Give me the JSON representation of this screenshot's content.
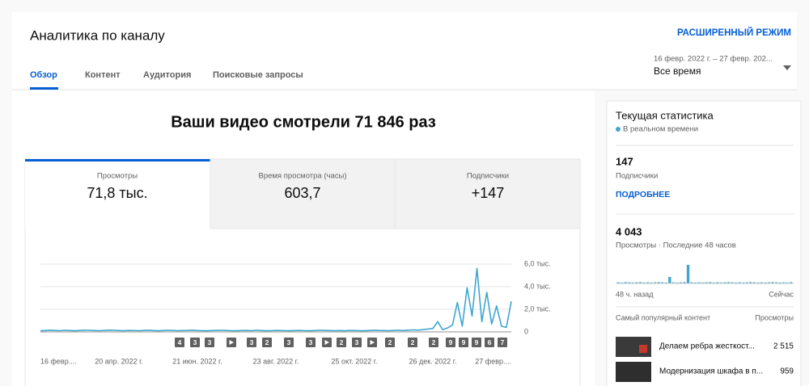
{
  "header": {
    "title": "Аналитика по каналу",
    "advanced_mode": "РАСШИРЕННЫЙ РЕЖИМ",
    "tabs": [
      "Обзор",
      "Контент",
      "Аудитория",
      "Поисковые запросы"
    ],
    "date_range": "16 февр. 2022 г. – 27 февр. 202...",
    "period": "Все время"
  },
  "summary": {
    "headline": "Ваши видео смотрели 71 846 раз",
    "metrics": [
      {
        "label": "Просмотры",
        "value": "71,8 тыс."
      },
      {
        "label": "Время просмотра (часы)",
        "value": "603,7"
      },
      {
        "label": "Подписчики",
        "value": "+147"
      }
    ]
  },
  "chart_data": {
    "type": "line",
    "color": "#3ea6cf",
    "categories": [
      "16 февр....",
      null,
      null,
      null,
      null,
      null,
      null,
      null,
      null,
      null,
      null,
      null,
      null,
      null,
      null,
      null,
      "20 апр. 2022 г.",
      null,
      null,
      null,
      null,
      null,
      null,
      null,
      null,
      null,
      null,
      null,
      null,
      null,
      null,
      null,
      "21 июн. 2022 г.",
      null,
      null,
      null,
      null,
      null,
      null,
      null,
      null,
      null,
      null,
      null,
      null,
      null,
      null,
      null,
      "23 авг. 2022 г.",
      null,
      null,
      null,
      null,
      null,
      null,
      null,
      null,
      null,
      null,
      null,
      null,
      null,
      null,
      null,
      "25 окт. 2022 г.",
      null,
      null,
      null,
      null,
      null,
      null,
      null,
      null,
      null,
      null,
      null,
      null,
      null,
      null,
      null,
      "26 дек. 2022 г.",
      null,
      null,
      null,
      null,
      null,
      null,
      null,
      null,
      null,
      null,
      null,
      null,
      null,
      null,
      null,
      "27 февр...."
    ],
    "values": [
      100,
      120,
      150,
      130,
      110,
      140,
      120,
      100,
      130,
      150,
      140,
      120,
      110,
      130,
      160,
      140,
      120,
      110,
      130,
      120,
      110,
      130,
      150,
      120,
      100,
      120,
      140,
      130,
      110,
      120,
      130,
      150,
      120,
      110,
      100,
      120,
      130,
      140,
      120,
      110,
      100,
      120,
      130,
      110,
      140,
      120,
      100,
      110,
      130,
      120,
      110,
      100,
      120,
      130,
      110,
      100,
      120,
      140,
      130,
      120,
      110,
      120,
      100,
      130,
      120,
      110,
      100,
      120,
      150,
      130,
      120,
      110,
      130,
      140,
      120,
      150,
      180,
      160,
      200,
      250,
      300,
      900,
      200,
      350,
      600,
      2600,
      500,
      3900,
      1400,
      5600,
      900,
      3500,
      700,
      2300,
      500,
      400,
      2700
    ],
    "ylim": [
      0,
      6000
    ],
    "yticks": [
      0,
      {
        "value": 2000,
        "label": "2,0 тыс."
      },
      {
        "value": 4000,
        "label": "4,0 тыс."
      },
      {
        "value": 6000,
        "label": "6,0 тыс."
      }
    ],
    "grid": true,
    "markers": [
      "4",
      "3",
      "3",
      null,
      "3",
      "2",
      "3",
      "3",
      null,
      "2",
      "3",
      null,
      "2",
      "2",
      "2",
      "9",
      "9",
      "9",
      "6",
      "7"
    ]
  },
  "realtime": {
    "title": "Текущая статистика",
    "live": "В реальном времени",
    "subscribers": "147",
    "subscribers_label": "Подписчики",
    "more": "ПОДРОБНЕЕ",
    "views": "4 043",
    "views_label": "Просмотры · Последние 48 часов",
    "bars": {
      "type": "bar",
      "color": "#3ea6cf",
      "values": [
        60,
        50,
        70,
        60,
        50,
        60,
        70,
        50,
        60,
        50,
        60,
        70,
        60,
        50,
        350,
        60,
        50,
        60,
        70,
        1000,
        60,
        50,
        60,
        50,
        60,
        70,
        50,
        60,
        50,
        60,
        70,
        60,
        50,
        60,
        50,
        60,
        70,
        60,
        50,
        60,
        50,
        60,
        70,
        60,
        50,
        60,
        50,
        70
      ],
      "start_label": "48 ч. назад",
      "end_label": "Сейчас"
    },
    "top_content_label": "Самый популярный контент",
    "top_content_metric": "Просмотры",
    "top_content": [
      {
        "title": "Делаем ребра жесткост...",
        "views": "2 515"
      },
      {
        "title": "Модернизация шкафа в п...",
        "views": "959"
      }
    ]
  }
}
